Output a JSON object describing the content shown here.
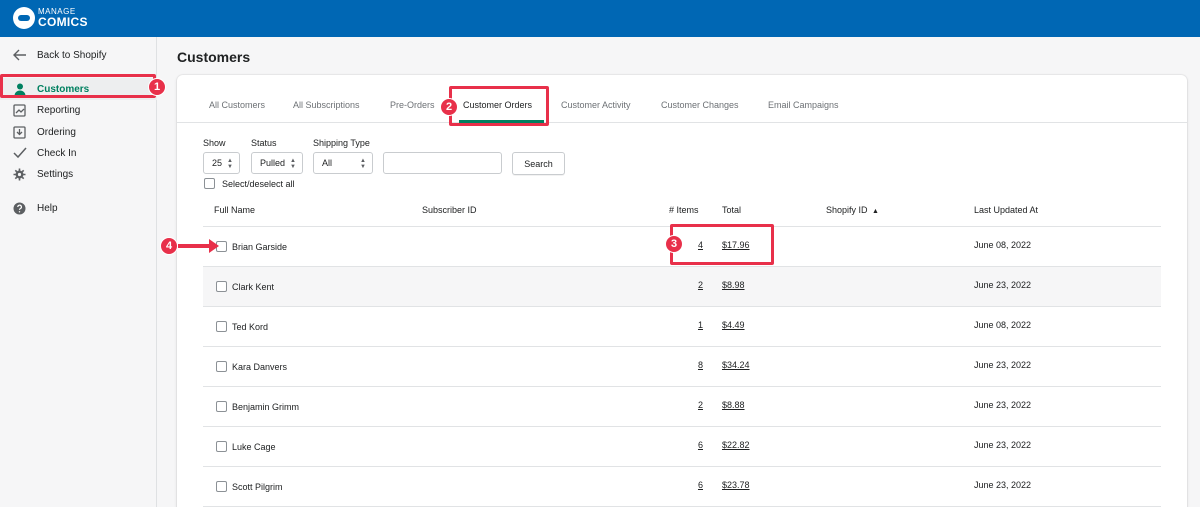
{
  "header": {
    "logo_top": "MANAGE",
    "logo_bottom": "COMICS"
  },
  "sidebar": {
    "back": {
      "label": "Back to Shopify",
      "icon": "arrow-left-icon"
    },
    "items": [
      {
        "label": "Customers",
        "icon": "person-icon",
        "active": true
      },
      {
        "label": "Reporting",
        "icon": "report-icon"
      },
      {
        "label": "Ordering",
        "icon": "inbox-download-icon"
      },
      {
        "label": "Check In",
        "icon": "checkmark-icon"
      },
      {
        "label": "Settings",
        "icon": "gear-icon"
      },
      {
        "label": "Help",
        "icon": "help-circle-icon"
      }
    ]
  },
  "page": {
    "title": "Customers"
  },
  "tabs": [
    {
      "label": "All Customers"
    },
    {
      "label": "All Subscriptions"
    },
    {
      "label": "Pre-Orders"
    },
    {
      "label": "Customer Orders",
      "active": true
    },
    {
      "label": "Customer Activity"
    },
    {
      "label": "Customer Changes"
    },
    {
      "label": "Email Campaigns"
    }
  ],
  "filters": {
    "show": {
      "label": "Show",
      "value": "25"
    },
    "status": {
      "label": "Status",
      "value": "Pulled"
    },
    "shipping": {
      "label": "Shipping Type",
      "value": "All"
    },
    "search_button": "Search",
    "select_all": "Select/deselect all"
  },
  "table": {
    "headers": {
      "full_name": "Full Name",
      "subscriber_id": "Subscriber ID",
      "items": "# Items",
      "total": "Total",
      "shopify_id": "Shopify ID",
      "last_updated": "Last Updated At"
    },
    "rows": [
      {
        "name": "Brian Garside",
        "items": "4",
        "total": "$17.96",
        "updated": "June 08, 2022"
      },
      {
        "name": "Clark Kent",
        "items": "2",
        "total": "$8.98",
        "updated": "June 23, 2022"
      },
      {
        "name": "Ted Kord",
        "items": "1",
        "total": "$4.49",
        "updated": "June 08, 2022"
      },
      {
        "name": "Kara Danvers",
        "items": "8",
        "total": "$34.24",
        "updated": "June 23, 2022"
      },
      {
        "name": "Benjamin Grimm",
        "items": "2",
        "total": "$8.88",
        "updated": "June 23, 2022"
      },
      {
        "name": "Luke Cage",
        "items": "6",
        "total": "$22.82",
        "updated": "June 23, 2022"
      },
      {
        "name": "Scott Pilgrim",
        "items": "6",
        "total": "$23.78",
        "updated": "June 23, 2022"
      }
    ]
  },
  "annotations": [
    "1",
    "2",
    "3",
    "4"
  ],
  "colors": {
    "topbar": "#0067b4",
    "accent": "#008060",
    "annotation": "#e8304a"
  }
}
